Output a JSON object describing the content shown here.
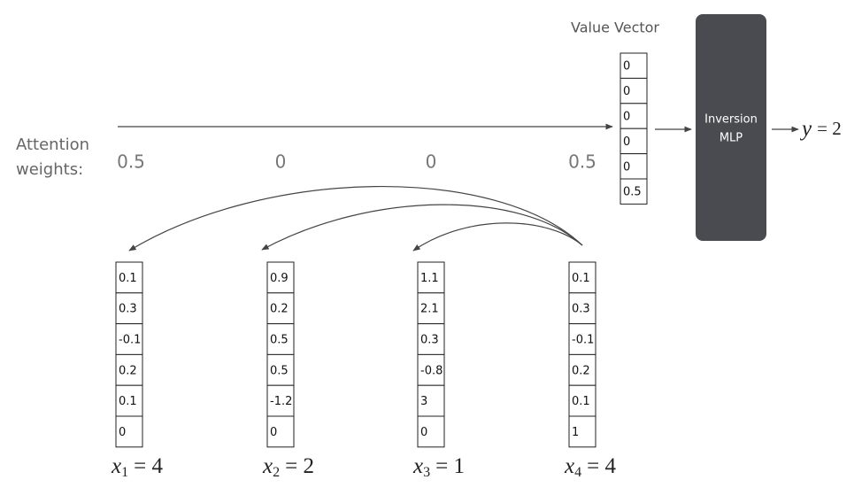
{
  "value_vector": {
    "title": "Value Vector",
    "values": [
      0,
      0,
      0,
      0,
      0,
      0.5
    ]
  },
  "mlp": {
    "lines": [
      "Inversion",
      "MLP"
    ]
  },
  "output": {
    "symbol": "y",
    "rest": "= 2"
  },
  "attention": {
    "label_lines": [
      "Attention",
      "weights:"
    ],
    "weights": [
      0.5,
      0,
      0,
      0.5
    ]
  },
  "input_vectors": [
    {
      "values": [
        0.1,
        0.3,
        -0.1,
        0.2,
        0.1,
        0
      ],
      "label": {
        "symbol": "x",
        "index": "1",
        "rest": "= 4"
      }
    },
    {
      "values": [
        0.9,
        0.2,
        0.5,
        0.5,
        -1.2,
        0
      ],
      "label": {
        "symbol": "x",
        "index": "2",
        "rest": "= 2"
      }
    },
    {
      "values": [
        1.1,
        2.1,
        0.3,
        -0.8,
        3,
        0
      ],
      "label": {
        "symbol": "x",
        "index": "3",
        "rest": "= 1"
      }
    },
    {
      "values": [
        0.1,
        0.3,
        -0.1,
        0.2,
        0.1,
        1
      ],
      "label": {
        "symbol": "x",
        "index": "4",
        "rest": "= 4"
      }
    }
  ]
}
